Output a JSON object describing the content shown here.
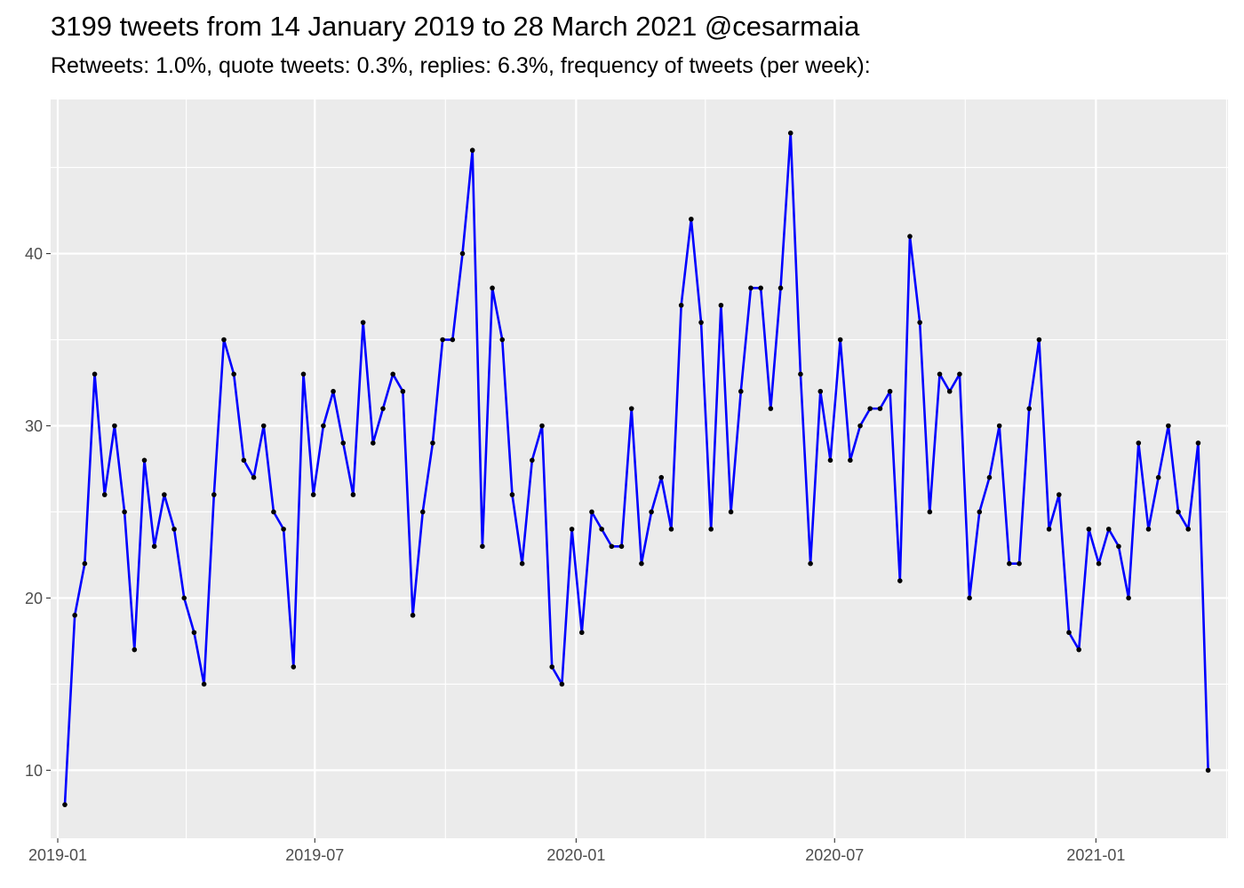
{
  "chart_data": {
    "type": "line",
    "title": "3199 tweets from 14 January 2019 to 28 March 2021 @cesarmaia",
    "subtitle": "Retweets: 1.0%, quote tweets: 0.3%, replies: 6.3%, frequency of tweets (per week):",
    "xlabel": "",
    "ylabel": "",
    "x_start": "2019-01-06",
    "x_step_days": 7,
    "x_ticks": [
      {
        "date": "2019-01-01",
        "label": "2019-01"
      },
      {
        "date": "2019-07-01",
        "label": "2019-07"
      },
      {
        "date": "2020-01-01",
        "label": "2020-01"
      },
      {
        "date": "2020-07-01",
        "label": "2020-07"
      },
      {
        "date": "2021-01-01",
        "label": "2021-01"
      }
    ],
    "xlim": [
      "2018-12-27",
      "2021-04-04"
    ],
    "y_ticks": [
      10,
      20,
      30,
      40
    ],
    "ylim": [
      6.05,
      48.95
    ],
    "grid": true,
    "line_color": "#0000ff",
    "point_color": "#000000",
    "panel_background": "#ebebeb",
    "grid_color": "#ffffff",
    "series": [
      {
        "values": [
          8,
          19,
          22,
          33,
          26,
          30,
          25,
          17,
          28,
          23,
          26,
          24,
          20,
          18,
          15,
          26,
          35,
          33,
          28,
          27,
          30,
          25,
          24,
          16,
          33,
          26,
          30,
          32,
          29,
          26,
          36,
          29,
          31,
          33,
          32,
          19,
          25,
          29,
          35,
          35,
          40,
          46,
          23,
          38,
          35,
          26,
          22,
          28,
          30,
          16,
          15,
          24,
          18,
          25,
          24,
          23,
          23,
          31,
          22,
          25,
          27,
          24,
          37,
          42,
          36,
          24,
          37,
          25,
          32,
          38,
          38,
          31,
          38,
          47,
          33,
          22,
          32,
          28,
          35,
          28,
          30,
          31,
          31,
          32,
          21,
          41,
          36,
          25,
          33,
          32,
          33,
          20,
          25,
          27,
          30,
          22,
          22,
          31,
          35,
          24,
          26,
          18,
          17,
          24,
          22,
          24,
          23,
          20,
          29,
          24,
          27,
          30,
          25,
          24,
          29,
          10
        ]
      }
    ]
  }
}
